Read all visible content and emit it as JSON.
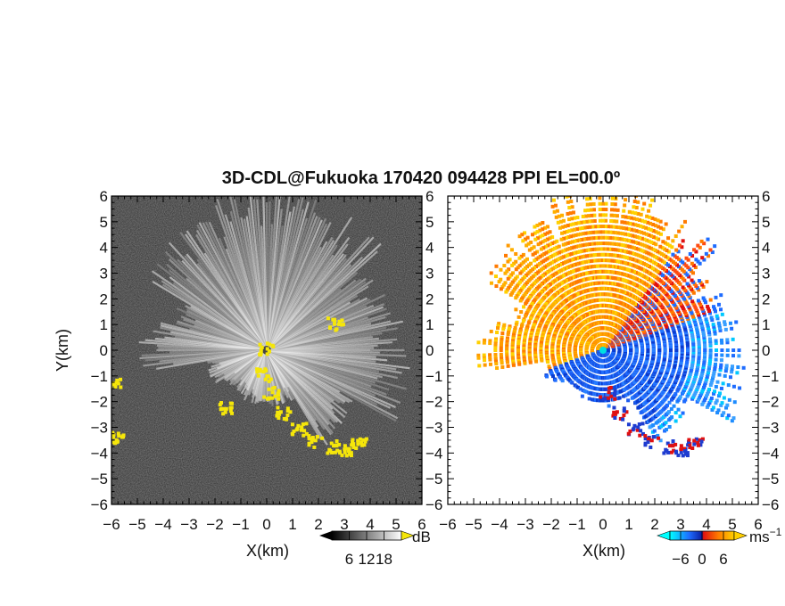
{
  "chart_data": [
    {
      "type": "heatmap",
      "panel": "left",
      "title": "3D-CDL@Fukuoka 170420 094428 PPI EL=00.0º",
      "xlabel": "X(km)",
      "ylabel": "Y(km)",
      "xlim": [
        -6,
        6
      ],
      "ylim": [
        -6,
        6
      ],
      "x_ticks": [
        "−6",
        "−5",
        "−4",
        "−3",
        "−2",
        "−1",
        "0",
        "1",
        "2",
        "3",
        "4",
        "5",
        "6"
      ],
      "y_ticks": [
        "6",
        "5",
        "4",
        "3",
        "2",
        "1",
        "0",
        "−1",
        "−2",
        "−3",
        "−4",
        "−5",
        "−6"
      ],
      "colorbar": {
        "unit": "dB",
        "ticks": [
          6,
          12,
          18
        ],
        "range": [
          0,
          24
        ],
        "colors": [
          "#000000",
          "#ffffff"
        ],
        "over_color": "#f5e60a"
      }
    },
    {
      "type": "heatmap",
      "panel": "right",
      "xlabel": "X(km)",
      "xlim": [
        -6,
        6
      ],
      "ylim": [
        -6,
        6
      ],
      "x_ticks": [
        "−6",
        "−5",
        "−4",
        "−3",
        "−2",
        "−1",
        "0",
        "1",
        "2",
        "3",
        "4",
        "5",
        "6"
      ],
      "y_ticks": [
        "6",
        "5",
        "4",
        "3",
        "2",
        "1",
        "0",
        "−1",
        "−2",
        "−3",
        "−4",
        "−5",
        "−6"
      ],
      "colorbar": {
        "unit": "ms",
        "unit_exp": "−1",
        "ticks": [
          -6,
          0,
          6
        ],
        "range": [
          -9,
          9
        ],
        "colors": [
          "#00ffff",
          "#1e6cff",
          "#0a1ea0",
          "#e01010",
          "#ff7a00",
          "#ffd000"
        ]
      }
    }
  ]
}
